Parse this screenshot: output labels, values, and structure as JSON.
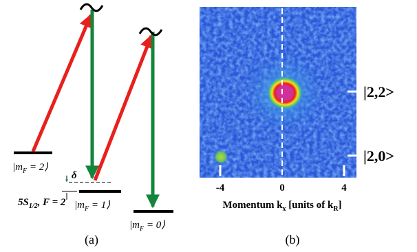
{
  "panel_a": {
    "levels": [
      {
        "pre": "|m",
        "sub": "F",
        "post": " = 2⟩"
      },
      {
        "pre": "|m",
        "sub": "F",
        "post": " = 1⟩"
      },
      {
        "pre": "|m",
        "sub": "F",
        "post": " = 0⟩"
      }
    ],
    "detuning": "δ",
    "state": {
      "pre": "5S",
      "sub": "1/2",
      "post": ", F = 2"
    },
    "caption": "(a)"
  },
  "panel_b": {
    "state_labels": [
      "|2,2>",
      "|2,0>"
    ],
    "x_ticks": [
      "-4",
      "0",
      "4"
    ],
    "x_label": {
      "pre": "Momentum  k",
      "sub1": "x",
      "mid": " [units of k",
      "sub2": "R",
      "post": "]"
    },
    "caption": "(b)"
  }
}
